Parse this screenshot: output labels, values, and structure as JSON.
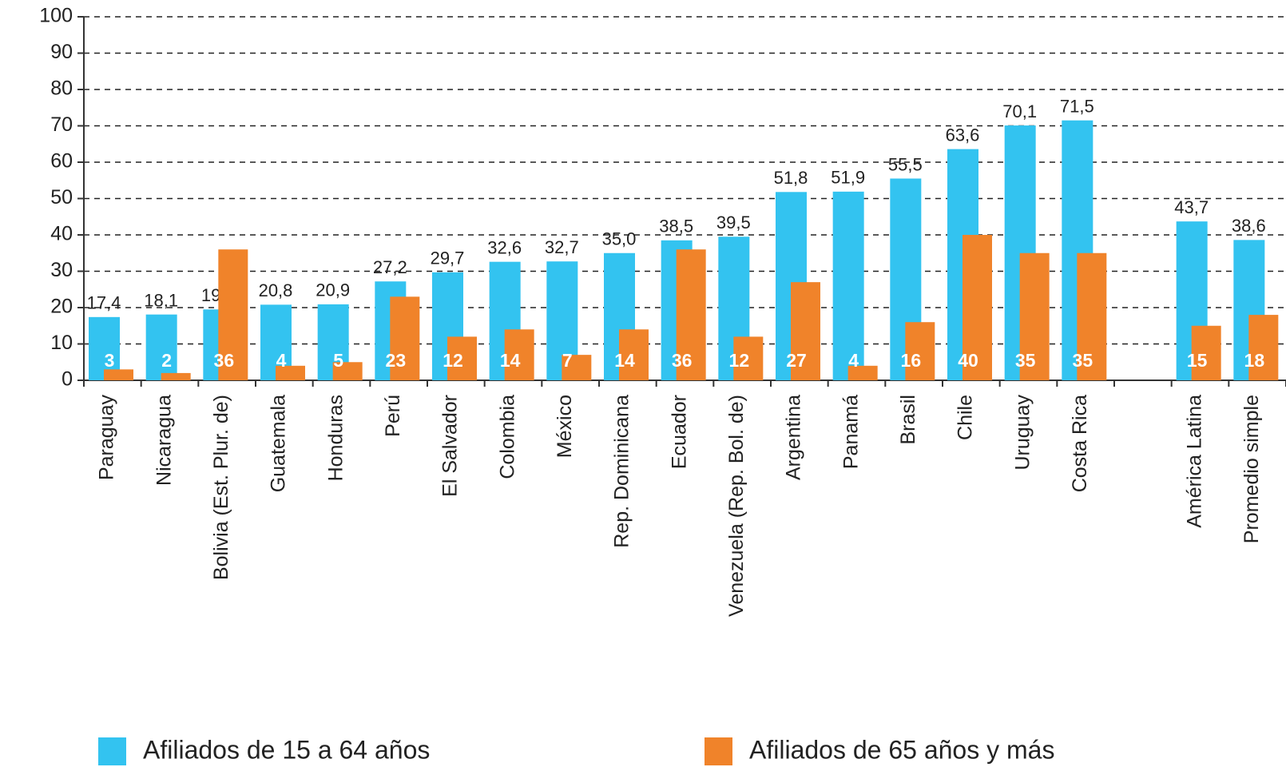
{
  "chart_data": {
    "type": "bar",
    "categories": [
      "Paraguay",
      "Nicaragua",
      "Bolivia (Est. Plur. de)",
      "Guatemala",
      "Honduras",
      "Perú",
      "El Salvador",
      "Colombia",
      "México",
      "Rep. Dominicana",
      "Ecuador",
      "Venezuela (Rep. Bol. de)",
      "Argentina",
      "Panamá",
      "Brasil",
      "Chile",
      "Uruguay",
      "Costa Rica",
      null,
      "América Latina",
      "Promedio simple"
    ],
    "series": [
      {
        "name": "Afiliados de 15 a 64 años",
        "color": "#33c3f0",
        "values": [
          17.4,
          18.1,
          19.5,
          20.8,
          20.9,
          27.2,
          29.7,
          32.6,
          32.7,
          35.0,
          38.5,
          39.5,
          51.8,
          51.9,
          55.5,
          63.6,
          70.1,
          71.5,
          null,
          43.7,
          38.6
        ],
        "value_labels": [
          "17,4",
          "18,1",
          "19,5",
          "20,8",
          "20,9",
          "27,2",
          "29,7",
          "32,6",
          "32,7",
          "35,0",
          "38,5",
          "39,5",
          "51,8",
          "51,9",
          "55,5",
          "63,6",
          "70,1",
          "71,5",
          null,
          "43,7",
          "38,6"
        ]
      },
      {
        "name": "Afiliados de 65 años y más",
        "color": "#f0832a",
        "values": [
          3,
          2,
          36,
          4,
          5,
          23,
          12,
          14,
          7,
          14,
          36,
          12,
          27,
          4,
          16,
          40,
          35,
          35,
          null,
          15,
          18
        ]
      }
    ],
    "ylim": [
      0,
      100
    ],
    "yticks": [
      0,
      10,
      20,
      30,
      40,
      50,
      60,
      70,
      80,
      90,
      100
    ],
    "grid": true
  }
}
